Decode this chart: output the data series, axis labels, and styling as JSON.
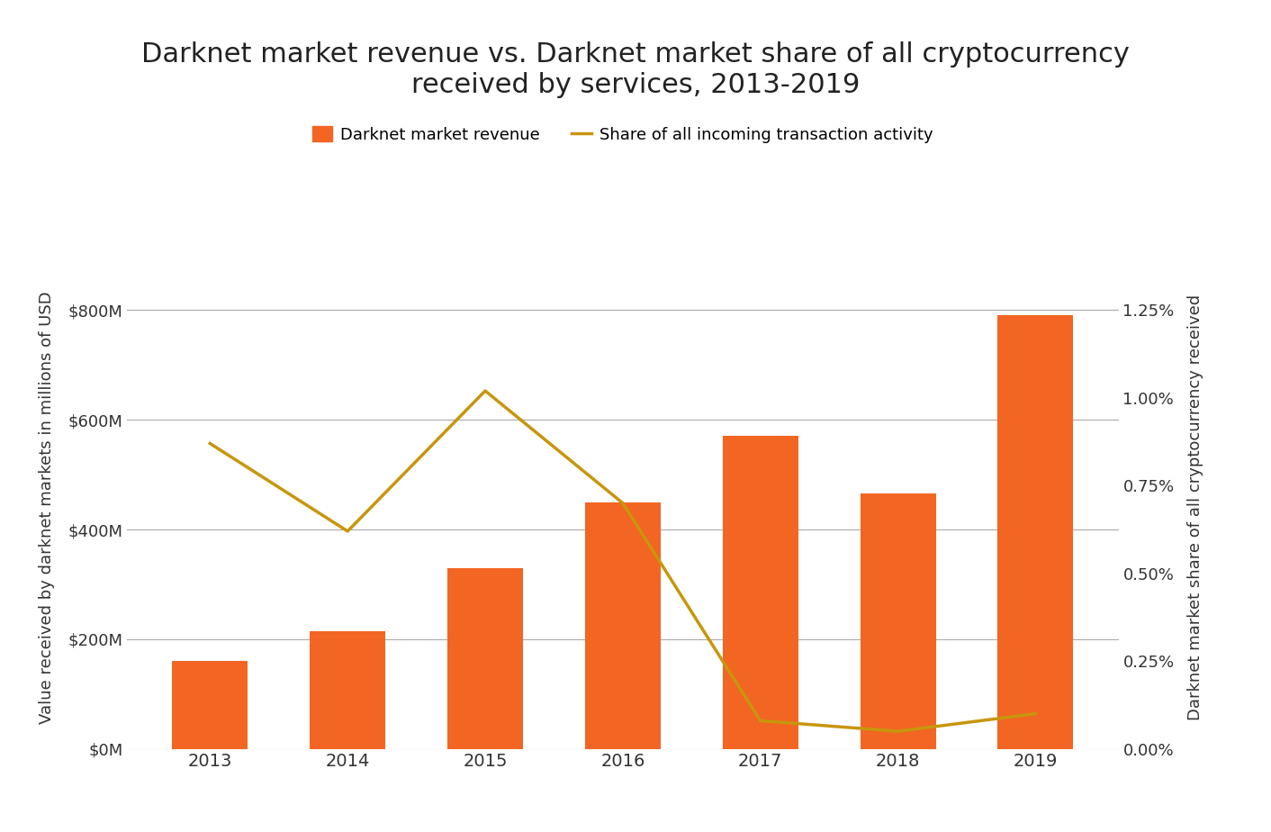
{
  "title_line1": "Darknet market revenue vs. Darknet market share of all cryptocurrency",
  "title_line2": "received by services, 2013-2019",
  "title_fontsize": 22,
  "background_color": "#ffffff",
  "years": [
    2013,
    2014,
    2015,
    2016,
    2017,
    2018,
    2019
  ],
  "bar_values": [
    160,
    215,
    330,
    450,
    570,
    465,
    790
  ],
  "bar_color": "#F26522",
  "line_values": [
    0.0087,
    0.0062,
    0.0102,
    0.007,
    0.0008,
    0.0005,
    0.001
  ],
  "line_color": "#C8960C",
  "left_ylabel": "Value received by darknet markets in millions of USD",
  "right_ylabel": "Darknet market share of all cryptocurrency received",
  "left_ylim": [
    0,
    880
  ],
  "left_yticks": [
    0,
    200,
    400,
    600,
    800
  ],
  "left_ytick_labels": [
    "$0M",
    "$200M",
    "$400M",
    "$600M",
    "$800M"
  ],
  "right_ylim": [
    0,
    0.01375
  ],
  "right_yticks": [
    0,
    0.0025,
    0.005,
    0.0075,
    0.01,
    0.0125
  ],
  "right_ytick_labels": [
    "0.00%",
    "0.25%",
    "0.50%",
    "0.75%",
    "1.00%",
    "1.25%"
  ],
  "legend_bar_label": "Darknet market revenue",
  "legend_line_label": "Share of all incoming transaction activity",
  "bar_width": 0.55,
  "ylabel_fontsize": 13,
  "tick_fontsize": 13,
  "legend_fontsize": 13,
  "xlabel_fontsize": 14,
  "grid_color": "#aaaaaa",
  "grid_linewidth": 0.8
}
